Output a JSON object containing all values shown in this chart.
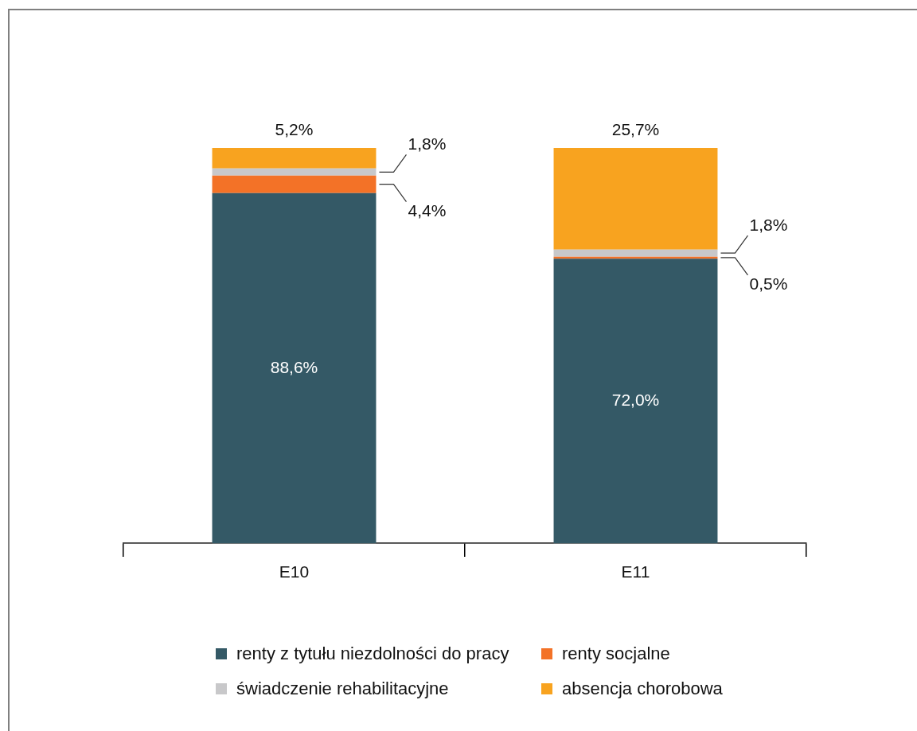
{
  "chart_data": {
    "type": "bar",
    "stacked": true,
    "categories": [
      "E10",
      "E11"
    ],
    "series": [
      {
        "name": "renty z tytułu niezdolności do pracy",
        "color": "#345966",
        "values": [
          88.6,
          72.0
        ],
        "value_labels": [
          "88,6%",
          "72,0%"
        ]
      },
      {
        "name": "renty socjalne",
        "color": "#f37227",
        "values": [
          4.4,
          0.5
        ],
        "value_labels": [
          "4,4%",
          "0,5%"
        ]
      },
      {
        "name": "świadczenie rehabilitacyjne",
        "color": "#c8c8ca",
        "values": [
          1.8,
          1.8
        ],
        "value_labels": [
          "1,8%",
          "1,8%"
        ]
      },
      {
        "name": "absencja chorobowa",
        "color": "#f8a31f",
        "values": [
          5.2,
          25.7
        ],
        "value_labels": [
          "5,2%",
          "25,7%"
        ]
      }
    ],
    "legend": "bottom",
    "tick_labels": "x"
  }
}
